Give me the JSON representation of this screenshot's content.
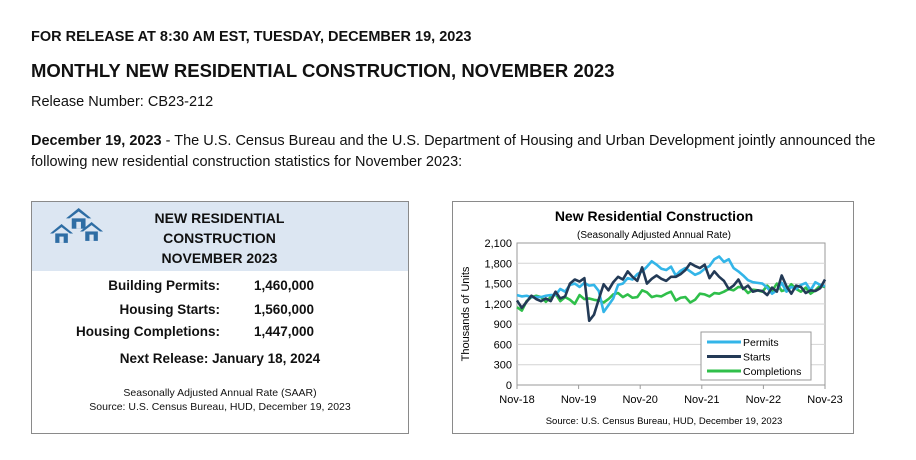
{
  "document": {
    "release_line": "FOR RELEASE AT 8:30 AM EST, TUESDAY, DECEMBER 19, 2023",
    "title": "MONTHLY NEW RESIDENTIAL CONSTRUCTION, NOVEMBER 2023",
    "release_number": "Release Number: CB23-212",
    "intro_date": "December 19, 2023",
    "intro_text": " - The U.S. Census Bureau and the U.S. Department of Housing and Urban Development jointly announced the following new residential construction statistics for November 2023:"
  },
  "summary": {
    "title_line1": "NEW RESIDENTIAL",
    "title_line2": "CONSTRUCTION",
    "title_line3": "NOVEMBER 2023",
    "stats": [
      {
        "label": "Building Permits:",
        "value": "1,460,000"
      },
      {
        "label": "Housing Starts:",
        "value": "1,560,000"
      },
      {
        "label": "Housing Completions:",
        "value": "1,447,000"
      }
    ],
    "next_release": "Next Release:  January 18, 2024",
    "note_line1": "Seasonally Adjusted Annual Rate (SAAR)",
    "note_line2": "Source:  U.S. Census Bureau, HUD, December 19, 2023",
    "logo_color": "#2e6da4"
  },
  "chart_data": {
    "type": "line",
    "title": "New Residential Construction",
    "subtitle": "(Seasonally Adjusted Annual Rate)",
    "ylabel": "Thousands of Units",
    "xlabel": "",
    "source": "Source: U.S. Census Bureau, HUD, December 19, 2023",
    "ylim": [
      0,
      2100
    ],
    "yticks": [
      0,
      300,
      600,
      900,
      1200,
      1500,
      1800,
      2100
    ],
    "ytick_labels": [
      "0",
      "300",
      "600",
      "900",
      "1,200",
      "1,500",
      "1,800",
      "2,100"
    ],
    "xticks": [
      "Nov-18",
      "Nov-19",
      "Nov-20",
      "Nov-21",
      "Nov-22",
      "Nov-23"
    ],
    "grid": true,
    "legend_position": "bottom-right",
    "series": [
      {
        "name": "Permits",
        "color": "#33b5e8",
        "values": [
          1330,
          1310,
          1320,
          1300,
          1300,
          1300,
          1320,
          1330,
          1330,
          1420,
          1380,
          1480,
          1500,
          1450,
          1510,
          1470,
          1480,
          1390,
          1080,
          1180,
          1280,
          1480,
          1500,
          1580,
          1560,
          1640,
          1680,
          1750,
          1830,
          1780,
          1720,
          1700,
          1750,
          1620,
          1690,
          1730,
          1680,
          1630,
          1660,
          1720,
          1760,
          1860,
          1900,
          1820,
          1860,
          1730,
          1680,
          1620,
          1550,
          1520,
          1510,
          1500,
          1440,
          1350,
          1400,
          1510,
          1380,
          1450,
          1420,
          1480,
          1510,
          1400,
          1520,
          1480,
          1460
        ]
      },
      {
        "name": "Starts",
        "color": "#233a56",
        "values": [
          1250,
          1140,
          1230,
          1320,
          1270,
          1240,
          1280,
          1240,
          1380,
          1280,
          1310,
          1500,
          1560,
          1530,
          1580,
          950,
          1040,
          1270,
          1490,
          1400,
          1520,
          1600,
          1560,
          1680,
          1600,
          1540,
          1740,
          1500,
          1570,
          1620,
          1570,
          1540,
          1600,
          1600,
          1640,
          1700,
          1800,
          1760,
          1730,
          1780,
          1580,
          1680,
          1600,
          1540,
          1420,
          1470,
          1560,
          1420,
          1470,
          1380,
          1400,
          1390,
          1330,
          1440,
          1380,
          1620,
          1460,
          1350,
          1470,
          1450,
          1360,
          1400,
          1390,
          1430,
          1560
        ]
      },
      {
        "name": "Completions",
        "color": "#2fbf4a",
        "values": [
          1150,
          1100,
          1240,
          1300,
          1320,
          1300,
          1230,
          1300,
          1350,
          1240,
          1300,
          1260,
          1200,
          1330,
          1270,
          1280,
          1260,
          1250,
          1220,
          1270,
          1340,
          1360,
          1300,
          1340,
          1290,
          1300,
          1400,
          1370,
          1300,
          1320,
          1310,
          1350,
          1380,
          1250,
          1290,
          1300,
          1220,
          1260,
          1350,
          1340,
          1310,
          1360,
          1350,
          1380,
          1420,
          1400,
          1450,
          1440,
          1360,
          1410,
          1400,
          1380,
          1470,
          1390,
          1500,
          1390,
          1410,
          1490,
          1420,
          1380,
          1440,
          1350,
          1400,
          1470,
          1447
        ]
      }
    ]
  }
}
